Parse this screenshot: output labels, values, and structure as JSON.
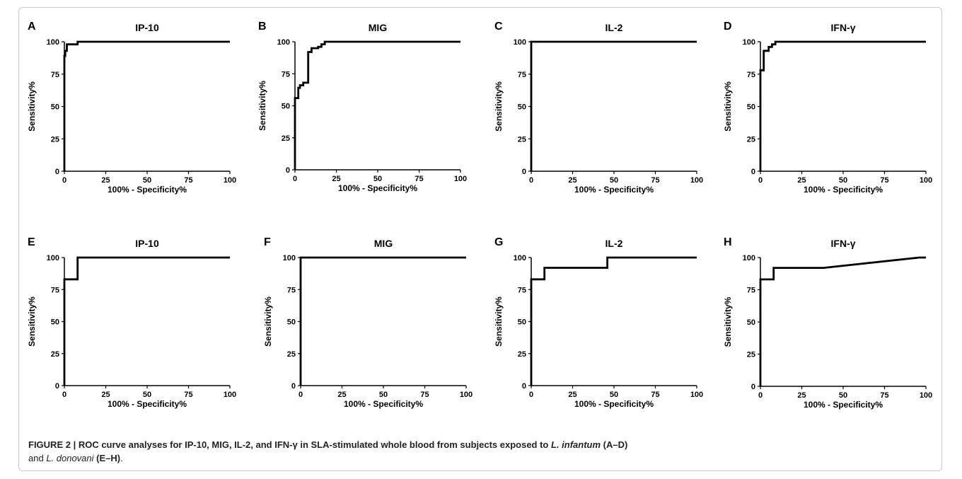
{
  "caption": {
    "label": "FIGURE 2 |",
    "seg1": " ROC curve analyses for IP-10, MIG, IL-2, and IFN-γ in SLA-stimulated whole blood from subjects exposed to ",
    "species1": "L. infantum",
    "range1": " (A–D)",
    "seg2": "and ",
    "species2": "L. donovani",
    "range2": "(E–H)",
    "end": "."
  },
  "chart_data": [
    {
      "type": "line",
      "panel": "A",
      "title": "IP-10",
      "xlabel": "100% - Specificity%",
      "ylabel": "Sensitivity%",
      "xlim": [
        0,
        100
      ],
      "ylim": [
        0,
        100
      ],
      "xticks": [
        "0",
        "25",
        "50",
        "75",
        "100"
      ],
      "yticks": [
        "0",
        "25",
        "50",
        "75",
        "100"
      ],
      "x": [
        0,
        0,
        0.5,
        0.5,
        1.5,
        1.5,
        3,
        3,
        8,
        8,
        100
      ],
      "y": [
        0,
        89,
        89,
        93,
        93,
        98,
        98,
        98,
        98,
        100,
        100
      ]
    },
    {
      "type": "line",
      "panel": "B",
      "title": "MIG",
      "xlabel": "100% - Specificity%",
      "ylabel": "Sensitivity%",
      "xlim": [
        0,
        100
      ],
      "ylim": [
        0,
        100
      ],
      "xticks": [
        "0",
        "25",
        "50",
        "75",
        "100"
      ],
      "yticks": [
        "0",
        "25",
        "50",
        "75",
        "100"
      ],
      "x": [
        0,
        0,
        2,
        2,
        3,
        3,
        5,
        5,
        8,
        8,
        10,
        10,
        14,
        14,
        16,
        16,
        18,
        18,
        100
      ],
      "y": [
        0,
        56,
        56,
        64,
        64,
        66,
        66,
        68,
        68,
        92,
        92,
        95,
        95,
        96,
        96,
        98,
        98,
        100,
        100
      ]
    },
    {
      "type": "line",
      "panel": "C",
      "title": "IL-2",
      "xlabel": "100% - Specificity%",
      "ylabel": "Sensitivity%",
      "xlim": [
        0,
        100
      ],
      "ylim": [
        0,
        100
      ],
      "xticks": [
        "0",
        "25",
        "50",
        "75",
        "100"
      ],
      "yticks": [
        "0",
        "25",
        "50",
        "75",
        "100"
      ],
      "x": [
        0,
        0,
        100
      ],
      "y": [
        0,
        100,
        100
      ]
    },
    {
      "type": "line",
      "panel": "D",
      "title": "IFN-γ",
      "xlabel": "100% - Specificity%",
      "ylabel": "Sensitivity%",
      "xlim": [
        0,
        100
      ],
      "ylim": [
        0,
        100
      ],
      "xticks": [
        "0",
        "25",
        "50",
        "75",
        "100"
      ],
      "yticks": [
        "0",
        "25",
        "50",
        "75",
        "100"
      ],
      "x": [
        0,
        0,
        2,
        2,
        5,
        5,
        7,
        7,
        9,
        9,
        100
      ],
      "y": [
        0,
        78,
        78,
        93,
        93,
        96,
        96,
        98,
        98,
        100,
        100
      ]
    },
    {
      "type": "line",
      "panel": "E",
      "title": "IP-10",
      "xlabel": "100% - Specificity%",
      "ylabel": "Sensitivity%",
      "xlim": [
        0,
        100
      ],
      "ylim": [
        0,
        100
      ],
      "xticks": [
        "0",
        "25",
        "50",
        "75",
        "100"
      ],
      "yticks": [
        "0",
        "25",
        "50",
        "75",
        "100"
      ],
      "x": [
        0,
        0,
        8,
        8,
        100
      ],
      "y": [
        0,
        83,
        83,
        100,
        100
      ]
    },
    {
      "type": "line",
      "panel": "F",
      "title": "MIG",
      "xlabel": "100% - Specificity%",
      "ylabel": "Sensitivity%",
      "xlim": [
        0,
        100
      ],
      "ylim": [
        0,
        100
      ],
      "xticks": [
        "0",
        "25",
        "50",
        "75",
        "100"
      ],
      "yticks": [
        "0",
        "25",
        "50",
        "75",
        "100"
      ],
      "x": [
        0,
        0,
        100
      ],
      "y": [
        0,
        100,
        100
      ]
    },
    {
      "type": "line",
      "panel": "G",
      "title": "IL-2",
      "xlabel": "100% - Specificity%",
      "ylabel": "Sensitivity%",
      "xlim": [
        0,
        100
      ],
      "ylim": [
        0,
        100
      ],
      "xticks": [
        "0",
        "25",
        "50",
        "75",
        "100"
      ],
      "yticks": [
        "0",
        "25",
        "50",
        "75",
        "100"
      ],
      "x": [
        0,
        0,
        8,
        8,
        46,
        46,
        100
      ],
      "y": [
        0,
        83,
        83,
        92,
        92,
        100,
        100
      ]
    },
    {
      "type": "line",
      "panel": "H",
      "title": "IFN-γ",
      "xlabel": "100% - Specificity%",
      "ylabel": "Sensitivity%",
      "xlim": [
        0,
        100
      ],
      "ylim": [
        0,
        100
      ],
      "xticks": [
        "0",
        "25",
        "50",
        "75",
        "100"
      ],
      "yticks": [
        "0",
        "25",
        "50",
        "75",
        "100"
      ],
      "x": [
        0,
        0,
        8,
        8,
        38,
        96,
        100
      ],
      "y": [
        0,
        83,
        83,
        92,
        92,
        100,
        100
      ]
    }
  ]
}
